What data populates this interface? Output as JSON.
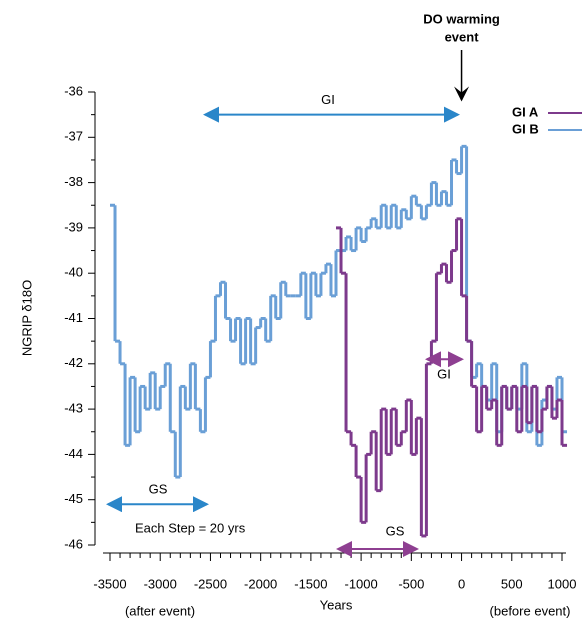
{
  "chart_data": {
    "type": "step",
    "x_label": "Years",
    "y_label": "NGRIP δ18O",
    "x_notes": [
      "(after event)",
      "(before event)"
    ],
    "annotations": {
      "event": [
        "DO warming",
        "event"
      ],
      "gi_b": "GI",
      "gs_b": "GS",
      "step": "Each Step = 20 yrs",
      "gs_a": "GS",
      "gi_a": "GI"
    },
    "xlim": [
      -3500,
      1000
    ],
    "ylim": [
      -46,
      -36
    ],
    "xticks": [
      -3500,
      -3000,
      -2500,
      -2000,
      -1500,
      -1000,
      -500,
      0,
      500,
      1000
    ],
    "yticks": [
      -36,
      -37,
      -38,
      -39,
      -40,
      -41,
      -42,
      -43,
      -44,
      -45,
      -46
    ],
    "series": [
      {
        "name": "GI B",
        "color": "#6a9fd6",
        "x": [
          -3500,
          -3450,
          -3400,
          -3350,
          -3300,
          -3250,
          -3200,
          -3150,
          -3100,
          -3050,
          -3000,
          -2950,
          -2900,
          -2850,
          -2800,
          -2750,
          -2700,
          -2650,
          -2600,
          -2550,
          -2500,
          -2450,
          -2400,
          -2350,
          -2300,
          -2250,
          -2200,
          -2150,
          -2100,
          -2050,
          -2000,
          -1950,
          -1900,
          -1850,
          -1800,
          -1750,
          -1700,
          -1650,
          -1600,
          -1550,
          -1500,
          -1450,
          -1400,
          -1350,
          -1300,
          -1250,
          -1200,
          -1150,
          -1100,
          -1050,
          -1000,
          -950,
          -900,
          -850,
          -800,
          -750,
          -700,
          -650,
          -600,
          -550,
          -500,
          -450,
          -400,
          -350,
          -300,
          -250,
          -200,
          -150,
          -100,
          -50,
          0,
          50,
          100,
          150,
          200,
          250,
          300,
          350,
          400,
          450,
          500,
          550,
          600,
          650,
          700,
          750,
          800,
          850,
          900,
          950,
          1000
        ],
        "values": [
          -38.5,
          -41.5,
          -42,
          -43.8,
          -42.3,
          -43.5,
          -42.5,
          -43,
          -42.2,
          -43,
          -42.5,
          -42,
          -43.5,
          -44.5,
          -42.5,
          -43,
          -42,
          -43,
          -43.5,
          -42.3,
          -41.5,
          -40.5,
          -40.2,
          -41,
          -41.5,
          -41,
          -42,
          -41,
          -42,
          -41.2,
          -41,
          -41.5,
          -40.5,
          -41,
          -40.2,
          -40.5,
          -40.5,
          -40.5,
          -40,
          -41,
          -40,
          -40.5,
          -40,
          -39.8,
          -40.5,
          -39.5,
          -39.5,
          -39.2,
          -39.5,
          -39,
          -39.3,
          -39,
          -38.8,
          -39,
          -38.5,
          -39,
          -38.5,
          -39,
          -38.6,
          -38.8,
          -38.3,
          -38.5,
          -38.8,
          -38.5,
          -38,
          -38.5,
          -38.2,
          -38.5,
          -37.5,
          -37.8,
          -37.2,
          -41.5,
          -42.3,
          -42,
          -42.5,
          -42.8,
          -42,
          -43.5,
          -42.5,
          -43,
          -42.5,
          -43,
          -42,
          -43.5,
          -42.5,
          -43.8,
          -42.8,
          -42.5,
          -43,
          -42.3,
          -43.5
        ]
      },
      {
        "name": "GI A",
        "color": "#7d3a8c",
        "x": [
          -1250,
          -1200,
          -1150,
          -1100,
          -1050,
          -1000,
          -950,
          -900,
          -850,
          -800,
          -750,
          -700,
          -650,
          -600,
          -550,
          -500,
          -450,
          -400,
          -350,
          -300,
          -250,
          -200,
          -150,
          -100,
          -50,
          0,
          50,
          100,
          150,
          200,
          250,
          300,
          350,
          400,
          450,
          500,
          550,
          600,
          650,
          700,
          750,
          800,
          850,
          900,
          950,
          1000
        ],
        "values": [
          -39,
          -40,
          -43.5,
          -43.8,
          -44.5,
          -45.5,
          -44,
          -43.5,
          -44.8,
          -43,
          -44,
          -43,
          -43.8,
          -43.5,
          -42.8,
          -44,
          -43.2,
          -45.8,
          -42,
          -41.5,
          -40,
          -39.8,
          -40.2,
          -39.5,
          -38.8,
          -40.5,
          -41.5,
          -42.5,
          -43.5,
          -42.5,
          -43,
          -42.8,
          -43.8,
          -42.5,
          -43,
          -42.5,
          -43.5,
          -42.5,
          -43.3,
          -42.5,
          -43.5,
          -43,
          -42.5,
          -43.2,
          -42.8,
          -43.8
        ]
      }
    ],
    "legend_order": [
      1,
      0
    ]
  }
}
